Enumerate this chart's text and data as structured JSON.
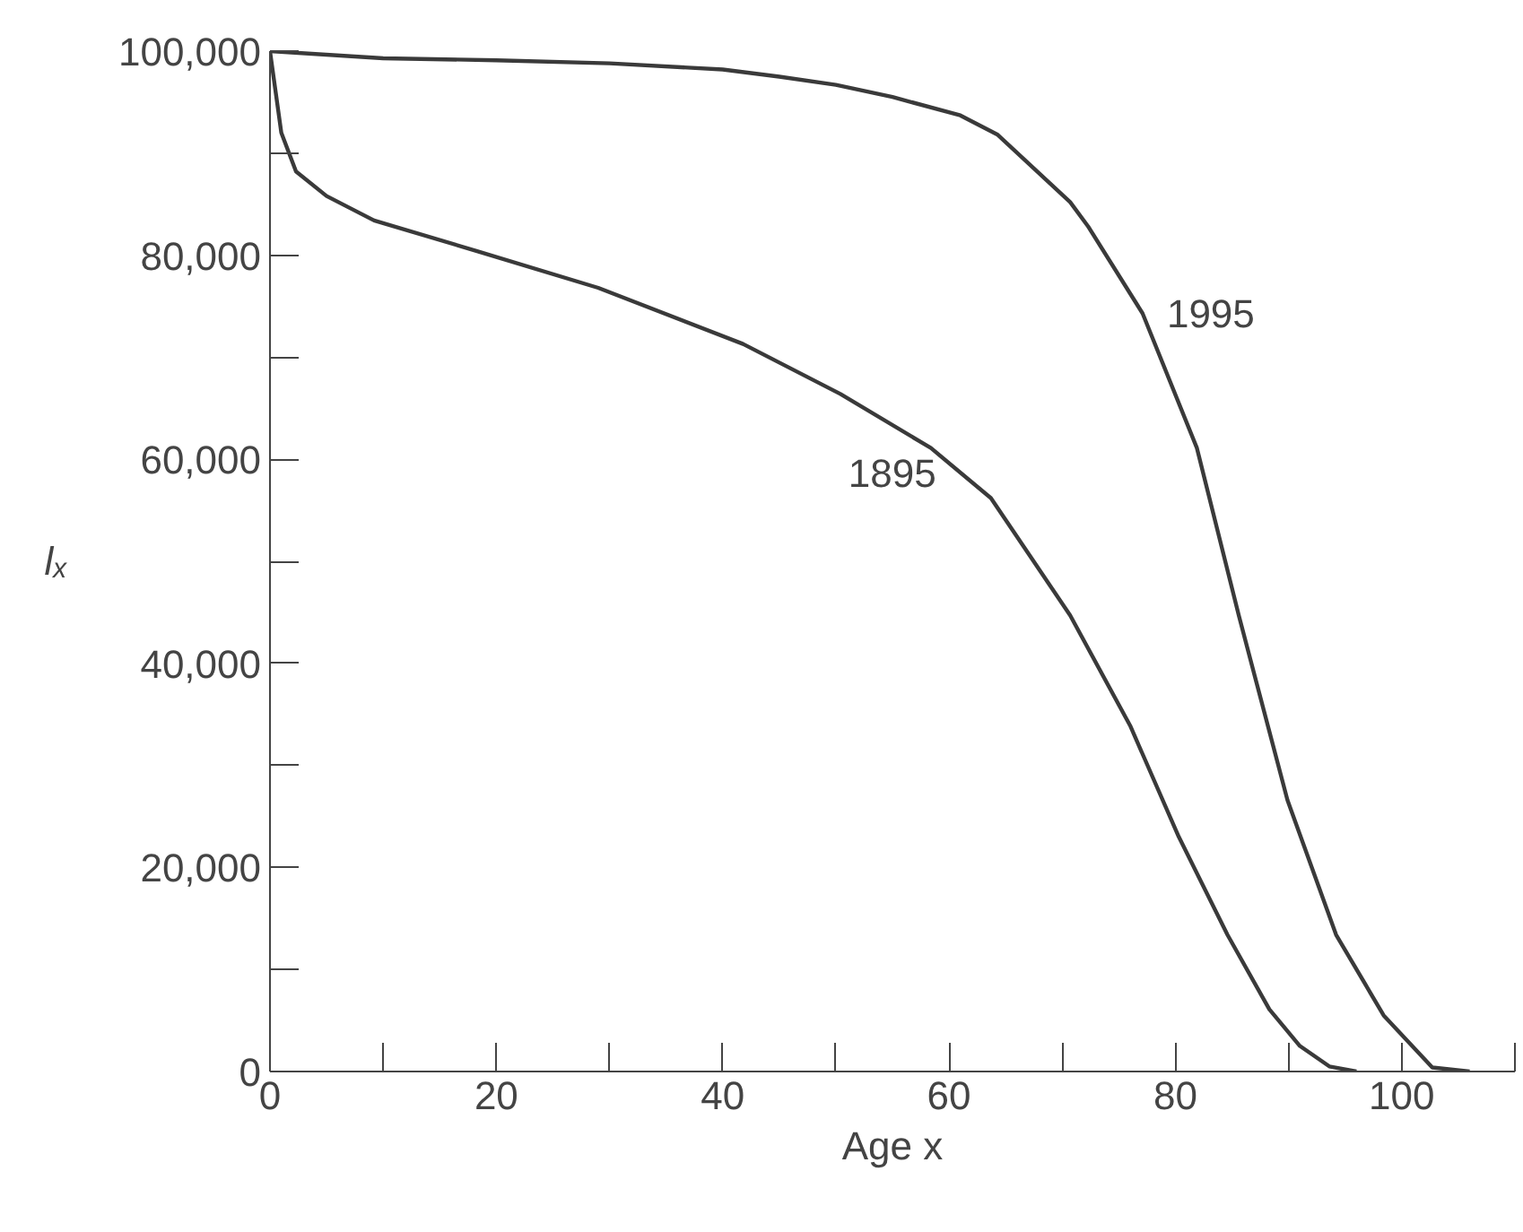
{
  "chart_data": {
    "type": "line",
    "xlabel": "Age x",
    "ylabel": "lₓ",
    "xlim": [
      0,
      110
    ],
    "ylim": [
      0,
      100000
    ],
    "xticks": [
      0,
      {
        "value": 10,
        "label": null
      },
      20,
      {
        "value": 30,
        "label": null
      },
      40,
      {
        "value": 50,
        "label": null
      },
      60,
      {
        "value": 70,
        "label": null
      },
      80,
      {
        "value": 90,
        "label": null
      },
      100,
      {
        "value": 110,
        "label": null
      }
    ],
    "yticks": [
      {
        "value": 0,
        "label": "0"
      },
      {
        "value": 10000,
        "label": null
      },
      {
        "value": 20000,
        "label": "20,000"
      },
      {
        "value": 30000,
        "label": null
      },
      {
        "value": 40000,
        "label": "40,000"
      },
      {
        "value": 50000,
        "label": null
      },
      {
        "value": 60000,
        "label": "60,000"
      },
      {
        "value": 70000,
        "label": null
      },
      {
        "value": 80000,
        "label": "80,000"
      },
      {
        "value": 90000,
        "label": null
      },
      {
        "value": 100000,
        "label": "100,000"
      }
    ],
    "grid": false,
    "marker": "none",
    "line_style": "solid",
    "series": [
      {
        "name": "1895",
        "color": "#3a3a3a",
        "x": [
          0,
          1,
          2.3,
          5,
          9.2,
          18.3,
          29,
          41.8,
          50.4,
          58.4,
          63.7,
          70.7,
          76,
          80.3,
          84.6,
          88.3,
          91,
          93.6,
          96
        ],
        "values": [
          100000,
          92000,
          88200,
          85800,
          83400,
          80400,
          76800,
          71300,
          66400,
          61100,
          56200,
          44700,
          33900,
          23000,
          13400,
          6100,
          2500,
          500,
          0
        ]
      },
      {
        "name": "1995",
        "color": "#3a3a3a",
        "x": [
          0,
          10,
          20,
          30,
          40,
          45,
          50,
          55,
          61,
          64.3,
          70.7,
          72.3,
          77.1,
          81.9,
          85.6,
          89.9,
          94.2,
          98.4,
          102.7,
          106
        ],
        "values": [
          100000,
          99300,
          99100,
          98800,
          98200,
          97500,
          96700,
          95500,
          93700,
          91800,
          85200,
          82800,
          74300,
          61100,
          44700,
          26600,
          13400,
          5500,
          400,
          0
        ]
      }
    ]
  }
}
